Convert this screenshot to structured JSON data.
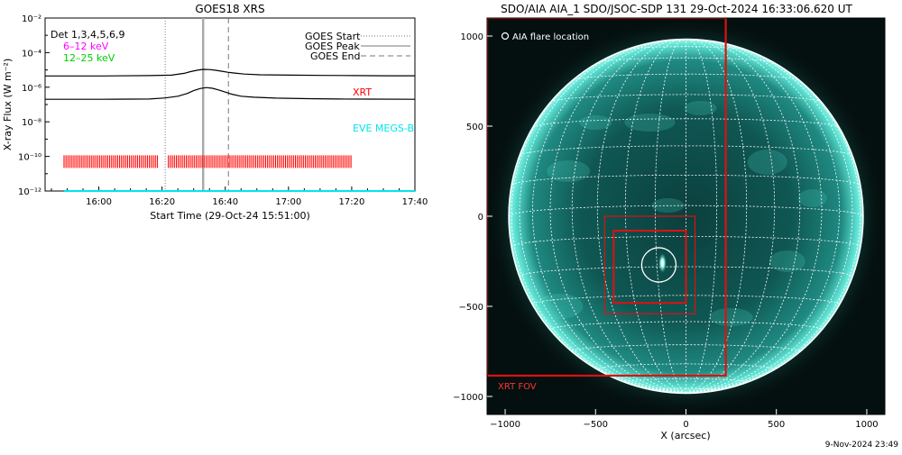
{
  "left_panel": {
    "title": "GOES18 XRS",
    "ylabel": "X-ray Flux (W m⁻²)",
    "xlabel": "Start Time (29-Oct-24 15:51:00)",
    "y_ticks": [
      {
        "value": -2,
        "label": "10⁻²"
      },
      {
        "value": -4,
        "label": "10⁻⁴"
      },
      {
        "value": -6,
        "label": "10⁻⁶"
      },
      {
        "value": -8,
        "label": "10⁻⁸"
      },
      {
        "value": -10,
        "label": "10⁻¹⁰"
      },
      {
        "value": -12,
        "label": "10⁻¹²"
      }
    ],
    "x_ticks": [
      {
        "value": 9,
        "label": "16:00"
      },
      {
        "value": 29,
        "label": "16:20"
      },
      {
        "value": 49,
        "label": "16:40"
      },
      {
        "value": 69,
        "label": "17:00"
      },
      {
        "value": 89,
        "label": "17:20"
      },
      {
        "value": 109,
        "label": "17:40"
      }
    ],
    "channels_label": "Det 1,3,4,5,6,9",
    "channel_labels": [
      {
        "text": "6–12 keV",
        "color": "#ff00ff"
      },
      {
        "text": "12–25 keV",
        "color": "#00cc00"
      }
    ],
    "legend": [
      {
        "text": "GOES Start",
        "style": "dotted"
      },
      {
        "text": "GOES Peak",
        "style": "solid"
      },
      {
        "text": "GOES End",
        "style": "dashed"
      }
    ],
    "xrt_label": "XRT",
    "eve_label": "EVE MEGS-B",
    "colors": {
      "xrt": "#ff0000",
      "eve": "#00e5ee",
      "curve": "#000000",
      "peak": "#aaaaaa"
    }
  },
  "right_panel": {
    "title": "SDO/AIA AIA_1 SDO/JSOC-SDP 131 29-Oct-2024 16:33:06.620 UT",
    "xlabel": "X (arcsec)",
    "x_ticks": [
      {
        "value": -1000,
        "label": "−1000"
      },
      {
        "value": -500,
        "label": "−500"
      },
      {
        "value": 0,
        "label": "0"
      },
      {
        "value": 500,
        "label": "500"
      },
      {
        "value": 1000,
        "label": "1000"
      }
    ],
    "y_ticks": [
      {
        "value": 1000,
        "label": "1000"
      },
      {
        "value": 500,
        "label": "500"
      },
      {
        "value": 0,
        "label": "0"
      },
      {
        "value": -500,
        "label": "−500"
      },
      {
        "value": -1000,
        "label": "−1000"
      }
    ],
    "legend_text": "AIA flare location",
    "xrt_fov_label": "XRT FOV",
    "colors": {
      "xrt": "#dd1111",
      "disk": "#0d4f4c",
      "glow": "#4fd9c8"
    }
  },
  "footer_timestamp": "9-Nov-2024 23:49",
  "chart_data": [
    {
      "type": "line",
      "title": "GOES18 XRS",
      "xlabel": "Start Time (29-Oct-24 15:51:00)",
      "ylabel": "X-ray Flux (W m⁻²)",
      "x_unit": "minutes since 15:51:00",
      "xlim": [
        -8,
        109
      ],
      "y_scale": "log",
      "ylim": [
        1e-12,
        0.01
      ],
      "goes_start_min": 30,
      "goes_peak_min": 42,
      "goes_end_min": 50,
      "xrt_coverage": [
        [
          -2,
          28
        ],
        [
          31,
          89
        ]
      ],
      "series": [
        {
          "x": [
            -8,
            10,
            25,
            32,
            36,
            38,
            40,
            42,
            44,
            46,
            48,
            50,
            52,
            55,
            60,
            70,
            80,
            90,
            100,
            109
          ],
          "log10_y": [
            -5.35,
            -5.35,
            -5.33,
            -5.3,
            -5.2,
            -5.1,
            -5.02,
            -4.97,
            -4.98,
            -5.02,
            -5.08,
            -5.14,
            -5.18,
            -5.24,
            -5.28,
            -5.3,
            -5.32,
            -5.33,
            -5.34,
            -5.34
          ]
        },
        {
          "x": [
            -8,
            10,
            25,
            30,
            34,
            37,
            39,
            41,
            43,
            45,
            47,
            49,
            51,
            54,
            58,
            65,
            75,
            85,
            95,
            109
          ],
          "log10_y": [
            -6.7,
            -6.7,
            -6.68,
            -6.62,
            -6.52,
            -6.36,
            -6.2,
            -6.08,
            -6.02,
            -6.06,
            -6.16,
            -6.28,
            -6.4,
            -6.52,
            -6.58,
            -6.63,
            -6.66,
            -6.68,
            -6.69,
            -6.7
          ]
        },
        {
          "name": "EVE MEGS-B",
          "x": [
            -2,
            109
          ],
          "log10_y": [
            -12.0,
            -12.0
          ]
        }
      ]
    },
    {
      "type": "image",
      "title": "SDO/AIA AIA_1 SDO/JSOC-SDP 131 29-Oct-2024 16:33:06.620 UT",
      "xlabel": "X (arcsec)",
      "xlim": [
        -1100,
        1100
      ],
      "ylim": [
        -1100,
        1100
      ],
      "disk_radius_arcsec": 980,
      "flare_location": [
        -150,
        -270
      ],
      "flare_circle_radius_arcsec": 95,
      "boxes": [
        {
          "x0": -450,
          "x1": 50,
          "y0": -540,
          "y1": 0
        },
        {
          "x0": -400,
          "x1": 0,
          "y0": -480,
          "y1": -80
        }
      ],
      "xrt_fov": {
        "x0": -1100,
        "x1": 220,
        "y0": -880,
        "y1": 1100
      }
    }
  ]
}
